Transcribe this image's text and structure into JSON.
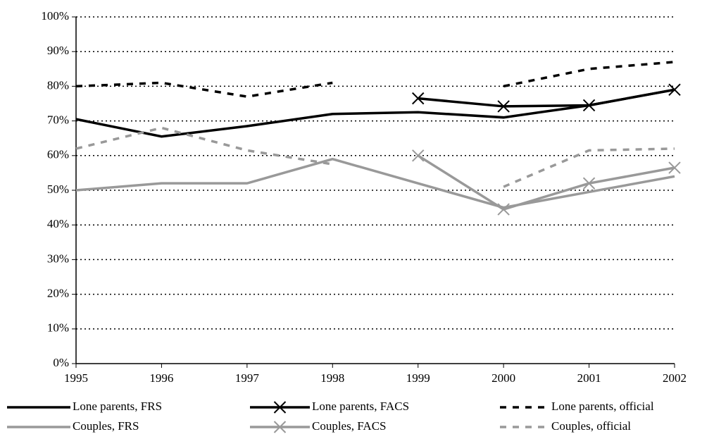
{
  "chart_data": {
    "type": "line",
    "x": [
      1995,
      1996,
      1997,
      1998,
      1999,
      2000,
      2001,
      2002
    ],
    "xlim": [
      1995,
      2002
    ],
    "xticks": [
      1995,
      1996,
      1997,
      1998,
      1999,
      2000,
      2001,
      2002
    ],
    "ylim": [
      0,
      100
    ],
    "yticks": [
      {
        "value": 0,
        "label": "0%"
      },
      {
        "value": 10,
        "label": "10%"
      },
      {
        "value": 20,
        "label": "20%"
      },
      {
        "value": 30,
        "label": "30%"
      },
      {
        "value": 40,
        "label": "40%"
      },
      {
        "value": 50,
        "label": "50%"
      },
      {
        "value": 60,
        "label": "60%"
      },
      {
        "value": 70,
        "label": "70%"
      },
      {
        "value": 80,
        "label": "80%"
      },
      {
        "value": 90,
        "label": "90%"
      },
      {
        "value": 100,
        "label": "100%"
      }
    ],
    "grid": true,
    "legend": "bottom",
    "series": [
      {
        "name": "Lone parents, FRS",
        "color": "#000000",
        "dash": false,
        "marker": "none",
        "values": [
          70.5,
          65.5,
          68.5,
          72,
          72.5,
          71,
          74.5,
          79
        ]
      },
      {
        "name": "Lone parents, FACS",
        "color": "#000000",
        "dash": false,
        "marker": "x",
        "values": [
          null,
          null,
          null,
          null,
          76.5,
          74.2,
          74.5,
          79
        ]
      },
      {
        "name": "Lone parents, official",
        "color": "#000000",
        "dash": true,
        "marker": "none",
        "values": [
          80,
          81,
          77,
          81,
          null,
          80,
          85,
          87
        ]
      },
      {
        "name": "Couples, FRS",
        "color": "#999999",
        "dash": false,
        "marker": "none",
        "values": [
          50,
          52,
          52,
          59,
          52,
          45,
          49.5,
          54
        ]
      },
      {
        "name": "Couples, FACS",
        "color": "#999999",
        "dash": false,
        "marker": "x",
        "values": [
          null,
          null,
          null,
          null,
          60,
          44.5,
          52,
          56.5
        ]
      },
      {
        "name": "Couples, official",
        "color": "#999999",
        "dash": true,
        "marker": "none",
        "values": [
          62,
          68,
          61.5,
          57.5,
          null,
          51,
          61.5,
          62
        ]
      }
    ]
  }
}
